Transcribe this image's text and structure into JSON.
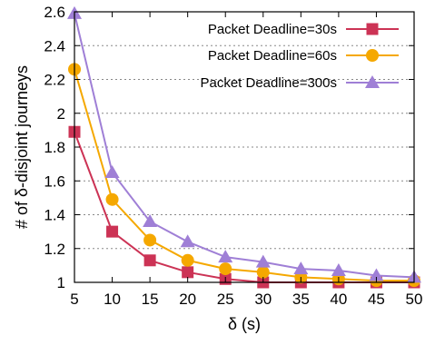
{
  "chart_data": {
    "type": "line",
    "xlabel": "δ (s)",
    "ylabel": "# of δ-disjoint journeys",
    "x": [
      5,
      10,
      15,
      20,
      25,
      30,
      35,
      40,
      45,
      50
    ],
    "xlim": [
      5,
      50
    ],
    "ylim": [
      1,
      2.6
    ],
    "xticks": [
      "5",
      "10",
      "15",
      "20",
      "25",
      "30",
      "35",
      "40",
      "45",
      "50"
    ],
    "yticks": [
      "1",
      "1.2",
      "1.4",
      "1.6",
      "1.8",
      "2",
      "2.2",
      "2.4",
      "2.6"
    ],
    "ytick_values": [
      1,
      1.2,
      1.4,
      1.6,
      1.8,
      2,
      2.2,
      2.4,
      2.6
    ],
    "grid": "horizontal dotted",
    "legend_position": "top-right",
    "series": [
      {
        "name": "Packet Deadline=30s",
        "color": "#cc3355",
        "marker": "square",
        "values": [
          1.89,
          1.3,
          1.13,
          1.06,
          1.02,
          1.0,
          1.0,
          1.0,
          1.0,
          1.0
        ]
      },
      {
        "name": "Packet Deadline=60s",
        "color": "#f5a800",
        "marker": "circle",
        "values": [
          2.26,
          1.49,
          1.25,
          1.13,
          1.08,
          1.06,
          1.03,
          1.02,
          1.01,
          1.01
        ]
      },
      {
        "name": "Packet Deadline=300s",
        "color": "#9f7fd6",
        "marker": "triangle",
        "values": [
          2.59,
          1.65,
          1.36,
          1.24,
          1.15,
          1.12,
          1.08,
          1.07,
          1.04,
          1.03
        ]
      }
    ]
  }
}
